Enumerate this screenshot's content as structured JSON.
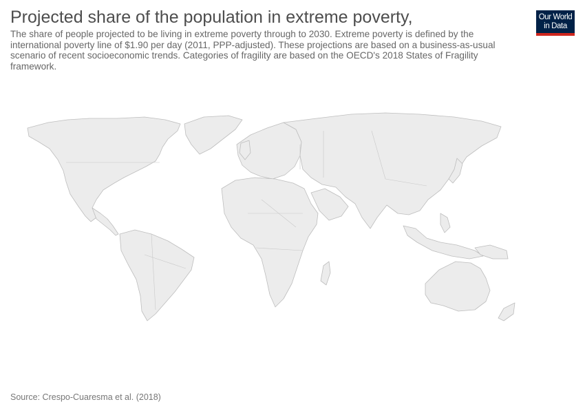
{
  "header": {
    "title": "Projected share of the population in extreme poverty,",
    "subtitle": "The share of people projected to be living in extreme poverty through to 2030. Extreme poverty is defined by the international poverty line of $1.90 per day (2011, PPP-adjusted). These projections are based on a business-as-usual scenario of recent socioeconomic trends. Categories of fragility are based on the OECD's 2018 States of Fragility framework."
  },
  "logo": {
    "line1": "Our World",
    "line2": "in Data"
  },
  "map": {
    "land_color": "#ececec",
    "border_color": "#bdbdbd"
  },
  "footer": {
    "source": "Source: Crespo-Cuaresma et al. (2018)"
  }
}
